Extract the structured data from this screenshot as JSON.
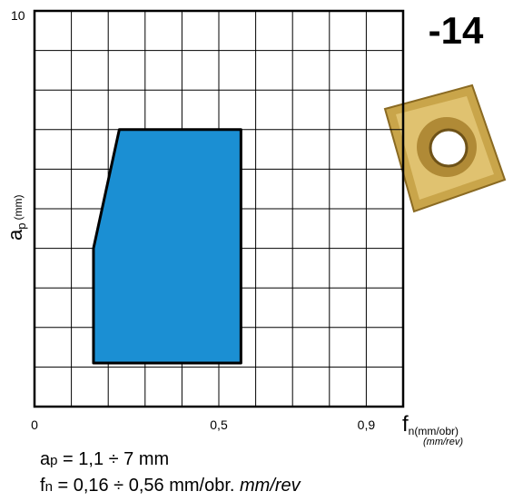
{
  "chart_data": {
    "type": "area",
    "title": "-14",
    "x_label": {
      "symbol": "f",
      "sub": "n(mm/obr)",
      "alt": "(mm/rev)"
    },
    "y_label": {
      "symbol": "a",
      "sub": "p",
      "unit": "(mm)"
    },
    "x": [
      0.16,
      0.16,
      0.23,
      0.56,
      0.56
    ],
    "values": [
      1.1,
      4,
      7,
      7,
      1.1
    ],
    "color": "#1b8fd3",
    "xlim": [
      0,
      1
    ],
    "ylim": [
      0,
      10
    ],
    "xticks": [
      0,
      {
        "value": 0.5,
        "label": "0,5"
      },
      {
        "value": 0.9,
        "label": "0,9"
      }
    ],
    "yticks": [
      10
    ],
    "grid": true,
    "notes": [
      {
        "symbol": "a",
        "sub": "p",
        "text": " = 1,1 ÷ 7 mm"
      },
      {
        "symbol": "f",
        "sub": "n",
        "text": " = 0,16 ÷ 0,56 mm/obr. ",
        "italic": "mm/rev"
      }
    ]
  }
}
